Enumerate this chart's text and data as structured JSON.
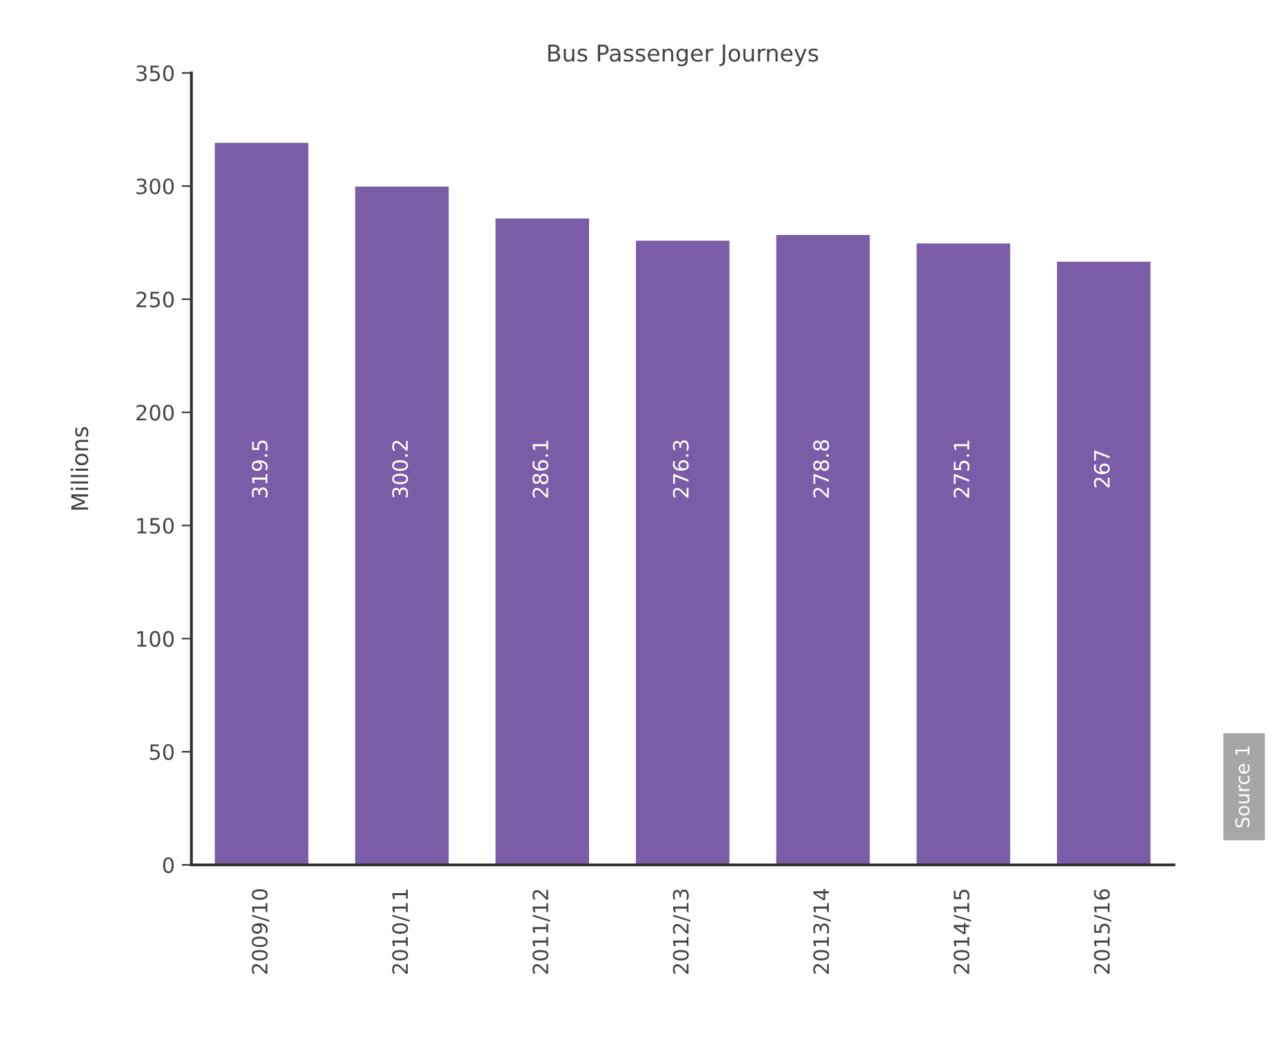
{
  "chart_data": {
    "type": "bar",
    "title": "Bus Passenger Journeys",
    "ylabel": "Millions",
    "categories": [
      "2009/10",
      "2010/11",
      "2011/12",
      "2012/13",
      "2013/14",
      "2014/15",
      "2015/16"
    ],
    "values": [
      319.5,
      300.2,
      286.1,
      276.3,
      278.8,
      275.1,
      267
    ],
    "color": "#7b5ca6",
    "ylim": [
      0,
      350
    ],
    "yticks": [
      0,
      50,
      100,
      150,
      200,
      250,
      300,
      350
    ],
    "data_labels": true,
    "grid": false,
    "legend": false,
    "annotations": [
      "Source 1"
    ]
  }
}
